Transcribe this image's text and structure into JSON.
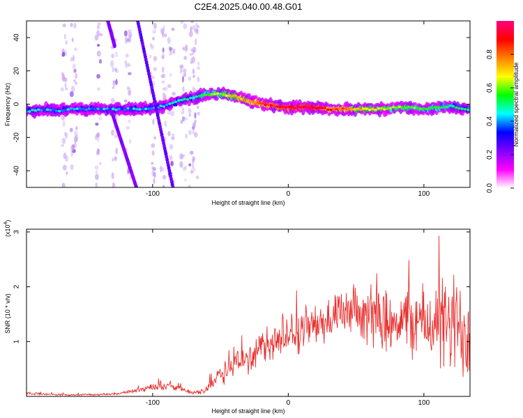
{
  "title": "C2E4.2025.040.00.48.G01",
  "chart_data": [
    {
      "type": "heatmap",
      "xlabel": "Height of straight line (km)",
      "ylabel": "Frequency (Hz)",
      "xlim": [
        -193,
        134
      ],
      "ylim": [
        -50,
        50
      ],
      "x_ticks": [
        -100,
        0,
        100
      ],
      "y_ticks": [
        -40,
        -20,
        0,
        20,
        40
      ],
      "colorbar": {
        "label": "Normalized spectral amplitude",
        "range": [
          0,
          1
        ],
        "ticks": [
          0.0,
          0.2,
          0.4,
          0.6,
          0.8
        ],
        "colormap": [
          "#ffffff",
          "#ff00ff",
          "#8000ff",
          "#0000ff",
          "#00ffff",
          "#00ff00",
          "#ffff00",
          "#ff8000",
          "#ff0000",
          "#ff0080"
        ]
      },
      "ridge": [
        {
          "x": -190,
          "f": -4,
          "a": 0.45
        },
        {
          "x": -180,
          "f": -3,
          "a": 0.4
        },
        {
          "x": -170,
          "f": -4,
          "a": 0.42
        },
        {
          "x": -160,
          "f": -3,
          "a": 0.4
        },
        {
          "x": -150,
          "f": -3,
          "a": 0.42
        },
        {
          "x": -140,
          "f": -3,
          "a": 0.4
        },
        {
          "x": -130,
          "f": -3,
          "a": 0.4
        },
        {
          "x": -120,
          "f": -3,
          "a": 0.4
        },
        {
          "x": -110,
          "f": -3,
          "a": 0.42
        },
        {
          "x": -100,
          "f": -2,
          "a": 0.42
        },
        {
          "x": -90,
          "f": -1,
          "a": 0.45
        },
        {
          "x": -80,
          "f": 2,
          "a": 0.45
        },
        {
          "x": -70,
          "f": 4,
          "a": 0.5
        },
        {
          "x": -60,
          "f": 6,
          "a": 0.55
        },
        {
          "x": -50,
          "f": 6,
          "a": 0.62
        },
        {
          "x": -40,
          "f": 5,
          "a": 0.7
        },
        {
          "x": -30,
          "f": 2,
          "a": 0.78
        },
        {
          "x": -20,
          "f": 0,
          "a": 0.82
        },
        {
          "x": -10,
          "f": -1,
          "a": 0.88
        },
        {
          "x": 0,
          "f": -2,
          "a": 0.93
        },
        {
          "x": 10,
          "f": -2,
          "a": 0.97
        },
        {
          "x": 20,
          "f": -2,
          "a": 0.95
        },
        {
          "x": 30,
          "f": -3,
          "a": 0.85
        },
        {
          "x": 40,
          "f": -3,
          "a": 0.8
        },
        {
          "x": 50,
          "f": -3,
          "a": 0.72
        },
        {
          "x": 60,
          "f": -3,
          "a": 0.68
        },
        {
          "x": 70,
          "f": -3,
          "a": 0.65
        },
        {
          "x": 80,
          "f": -2,
          "a": 0.62
        },
        {
          "x": 90,
          "f": -2,
          "a": 0.6
        },
        {
          "x": 100,
          "f": -3,
          "a": 0.55
        },
        {
          "x": 110,
          "f": -2,
          "a": 0.55
        },
        {
          "x": 120,
          "f": -1,
          "a": 0.5
        },
        {
          "x": 130,
          "f": -3,
          "a": 0.48
        }
      ],
      "tracks": [
        {
          "from": [
            -111,
            50
          ],
          "to": [
            -85,
            -50
          ],
          "a": 0.25
        },
        {
          "from": [
            -133,
            50
          ],
          "to": [
            -128,
            35
          ],
          "a": 0.22
        },
        {
          "from": [
            -130,
            -5
          ],
          "to": [
            -112,
            -50
          ],
          "a": 0.22
        }
      ],
      "noise_columns": [
        -165,
        -158,
        -140,
        -128,
        -118,
        -100,
        -92,
        -86,
        -77,
        -71,
        -68
      ]
    },
    {
      "type": "line",
      "xlabel": "Height of straight line (km)",
      "ylabel": "SNR (10 * v/v)",
      "y_multiplier": "(x10",
      "y_multiplier_exp": "4",
      "xlim": [
        -193,
        134
      ],
      "ylim": [
        0,
        3.05
      ],
      "x_ticks": [
        -100,
        0,
        100
      ],
      "y_ticks": [
        1,
        2,
        3
      ],
      "series": [
        {
          "color": "#e8302e",
          "envelope": {
            "x": [
              -193,
              -180,
              -160,
              -140,
              -125,
              -110,
              -100,
              -90,
              -80,
              -70,
              -62,
              -55,
              -45,
              -30,
              -15,
              0,
              15,
              30,
              45,
              60,
              80,
              100,
              115,
              125,
              134
            ],
            "y": [
              0.06,
              0.04,
              0.03,
              0.03,
              0.05,
              0.12,
              0.18,
              0.2,
              0.14,
              0.06,
              0.1,
              0.3,
              0.5,
              0.7,
              0.95,
              1.1,
              1.25,
              1.4,
              1.5,
              1.45,
              1.4,
              1.35,
              1.3,
              1.25,
              1.2
            ],
            "amp": [
              0.03,
              0.02,
              0.02,
              0.02,
              0.02,
              0.05,
              0.08,
              0.09,
              0.06,
              0.03,
              0.06,
              0.18,
              0.28,
              0.35,
              0.4,
              0.45,
              0.45,
              0.45,
              0.5,
              0.6,
              0.7,
              0.8,
              1.05,
              1.2,
              1.3
            ]
          }
        }
      ]
    }
  ]
}
